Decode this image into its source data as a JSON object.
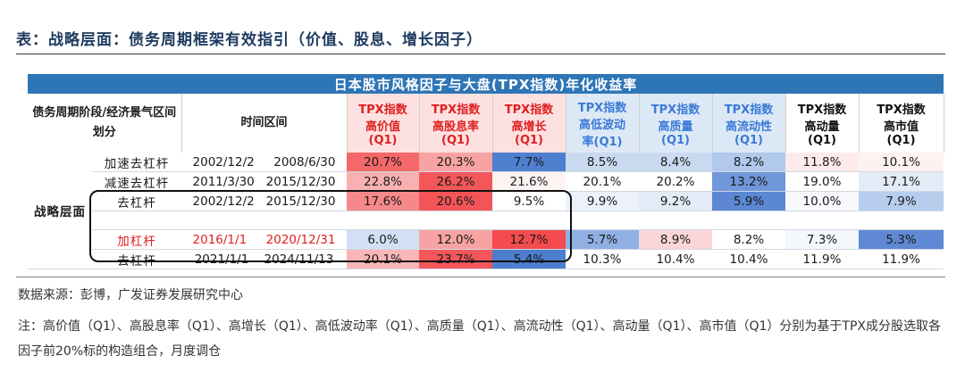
{
  "doc_title": "表：战略层面：债务周期框架有效指引（价值、股息、增长因子）",
  "banner": "日本股市风格因子与大盘(TPX指数)年化收益率",
  "header": {
    "left": "债务周期阶段/经济景气区间划分",
    "time": "时间区间",
    "cols": [
      {
        "l1": "TPX指数",
        "l2": "高价值",
        "l3": "(Q1)"
      },
      {
        "l1": "TPX指数",
        "l2": "高股息率",
        "l3": "(Q1)"
      },
      {
        "l1": "TPX指数",
        "l2": "高增长",
        "l3": "(Q1)"
      },
      {
        "l1": "TPX指数",
        "l2": "高低波动",
        "l3": "率(Q1)"
      },
      {
        "l1": "TPX指数",
        "l2": "高质量",
        "l3": "(Q1)"
      },
      {
        "l1": "TPX指数",
        "l2": "高流动性",
        "l3": "(Q1)"
      },
      {
        "l1": "TPX指数",
        "l2": "高动量",
        "l3": "(Q1)"
      },
      {
        "l1": "TPX指数",
        "l2": "高市值",
        "l3": "(Q1)"
      }
    ]
  },
  "group_label": "战略层面",
  "rows": [
    {
      "phase": "加速去杠杆",
      "start": "2002/12/2",
      "end": "2008/6/30",
      "values": [
        "20.7%",
        "20.3%",
        "7.7%",
        "8.5%",
        "8.4%",
        "8.2%",
        "11.8%",
        "10.1%"
      ],
      "fills": [
        "#f4686a",
        "#f8a3a3",
        "#4f7fcf",
        "#c9daf0",
        "#c9daf0",
        "#b0c9ec",
        "#fdeaea",
        "#fdf2f2"
      ]
    },
    {
      "phase": "减速去杠杆",
      "start": "2011/3/30",
      "end": "2015/12/30",
      "values": [
        "22.8%",
        "26.2%",
        "21.6%",
        "20.1%",
        "20.2%",
        "13.2%",
        "19.0%",
        "17.1%"
      ],
      "fills": [
        "#f9b0b0",
        "#f4575a",
        "#fdf3f3",
        "#ffffff",
        "#ffffff",
        "#6f97d9",
        "#ffffff",
        "#e3ebf7"
      ]
    },
    {
      "phase": "去杠杆",
      "start": "2002/12/2",
      "end": "2015/12/30",
      "values": [
        "17.6%",
        "20.6%",
        "9.5%",
        "9.9%",
        "9.2%",
        "5.9%",
        "10.0%",
        "7.9%"
      ],
      "fills": [
        "#f6888a",
        "#f35457",
        "#ffffff",
        "#edf2fa",
        "#e3ebf7",
        "#5b87d3",
        "#f6f8fc",
        "#b7cdee"
      ]
    },
    {
      "phase": "加杠杆",
      "start": "2016/1/1",
      "end": "2020/12/31",
      "values": [
        "6.0%",
        "12.0%",
        "12.7%",
        "5.7%",
        "8.9%",
        "8.2%",
        "7.3%",
        "5.3%"
      ],
      "fills": [
        "#d2e0f3",
        "#f8a3a3",
        "#f34b4e",
        "#90b0e3",
        "#fbd6d6",
        "#ffffff",
        "#f4f7fc",
        "#5f89d4"
      ],
      "red": true
    },
    {
      "phase": "去杠杆",
      "start": "2021/1/1",
      "end": "2024/11/13",
      "values": [
        "20.1%",
        "23.7%",
        "5.4%",
        "10.3%",
        "10.4%",
        "10.4%",
        "11.9%",
        "11.9%"
      ],
      "fills": [
        "#f9b6b6",
        "#f3575a",
        "#4d7ece",
        "#ffffff",
        "#ffffff",
        "#ffffff",
        "#ffffff",
        "#ffffff"
      ]
    }
  ],
  "source": "数据来源：彭博，广发证券发展研究中心",
  "note": "注：高价值（Q1）、高股息率（Q1）、高增长（Q1）、高低波动率（Q1）、高质量（Q1）、高流动性（Q1）、高动量（Q1）、高市值（Q1）分别为基于TPX成分股选取各因子前20%标的构造组合，月度调仓"
}
